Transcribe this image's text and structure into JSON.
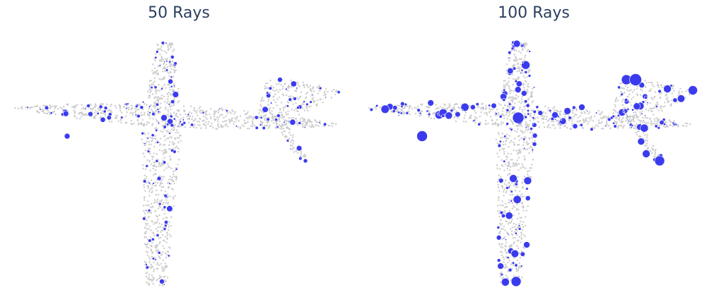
{
  "chart_data": [
    {
      "type": "scatter",
      "title": "50 Rays",
      "series": [
        {
          "role": "background point cloud",
          "color": "#cccccc"
        },
        {
          "role": "ray hits",
          "color": "#3b3bee"
        }
      ]
    },
    {
      "type": "scatter",
      "title": "100 Rays",
      "series": [
        {
          "role": "background point cloud",
          "color": "#cccccc"
        },
        {
          "role": "ray hits",
          "color": "#3b3bee"
        }
      ]
    }
  ]
}
